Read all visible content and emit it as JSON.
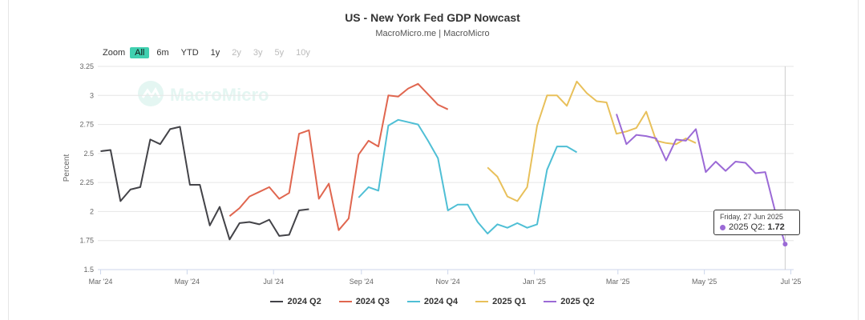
{
  "title": "US - New York Fed GDP Nowcast",
  "subtitle": "MacroMicro.me | MacroMicro",
  "watermark": "MacroMicro",
  "zoom": {
    "label": "Zoom",
    "buttons": [
      "All",
      "6m",
      "YTD",
      "1y",
      "2y",
      "3y",
      "5y",
      "10y"
    ],
    "active": "All",
    "enabled": [
      "All",
      "6m",
      "YTD",
      "1y"
    ]
  },
  "tooltip": {
    "date": "Friday, 27 Jun 2025",
    "series": "2025 Q2",
    "value": "1.72"
  },
  "colors": {
    "2024 Q2": "#434348",
    "2024 Q3": "#e0664f",
    "2024 Q4": "#4fbfd5",
    "2025 Q1": "#e8c05a",
    "2025 Q2": "#9b6ad6",
    "accent": "#40d0b0"
  },
  "chart_data": {
    "type": "line",
    "title": "US - New York Fed GDP Nowcast",
    "ylabel": "Percent",
    "xlabel": "",
    "ylim": [
      1.5,
      3.25
    ],
    "y_ticks": [
      "3.25",
      "3",
      "2.75",
      "2.5",
      "2.25",
      "2",
      "1.75",
      "1.5"
    ],
    "x_range": [
      "2024-02-28",
      "2025-07-03"
    ],
    "x_ticks": [
      {
        "date": "2024-03-01",
        "label": "Mar '24"
      },
      {
        "date": "2024-05-01",
        "label": "May '24"
      },
      {
        "date": "2024-07-01",
        "label": "Jul '24"
      },
      {
        "date": "2024-09-01",
        "label": "Sep '24"
      },
      {
        "date": "2024-11-01",
        "label": "Nov '24"
      },
      {
        "date": "2025-01-01",
        "label": "Jan '25"
      },
      {
        "date": "2025-03-01",
        "label": "Mar '25"
      },
      {
        "date": "2025-05-01",
        "label": "May '25"
      },
      {
        "date": "2025-07-01",
        "label": "Jul '25"
      }
    ],
    "legend_position": "bottom",
    "series": [
      {
        "name": "2024 Q2",
        "points": [
          [
            "2024-03-01",
            2.52
          ],
          [
            "2024-03-08",
            2.53
          ],
          [
            "2024-03-15",
            2.09
          ],
          [
            "2024-03-22",
            2.19
          ],
          [
            "2024-03-29",
            2.21
          ],
          [
            "2024-04-05",
            2.62
          ],
          [
            "2024-04-12",
            2.58
          ],
          [
            "2024-04-19",
            2.71
          ],
          [
            "2024-04-26",
            2.73
          ],
          [
            "2024-05-03",
            2.23
          ],
          [
            "2024-05-10",
            2.23
          ],
          [
            "2024-05-17",
            1.88
          ],
          [
            "2024-05-24",
            2.04
          ],
          [
            "2024-05-31",
            1.76
          ],
          [
            "2024-06-07",
            1.9
          ],
          [
            "2024-06-14",
            1.91
          ],
          [
            "2024-06-21",
            1.89
          ],
          [
            "2024-06-28",
            1.93
          ],
          [
            "2024-07-05",
            1.79
          ],
          [
            "2024-07-12",
            1.8
          ],
          [
            "2024-07-19",
            2.01
          ],
          [
            "2024-07-26",
            2.02
          ]
        ]
      },
      {
        "name": "2024 Q3",
        "points": [
          [
            "2024-05-31",
            1.96
          ],
          [
            "2024-06-07",
            2.03
          ],
          [
            "2024-06-14",
            2.13
          ],
          [
            "2024-06-21",
            2.17
          ],
          [
            "2024-06-28",
            2.21
          ],
          [
            "2024-07-05",
            2.11
          ],
          [
            "2024-07-12",
            2.16
          ],
          [
            "2024-07-19",
            2.67
          ],
          [
            "2024-07-26",
            2.7
          ],
          [
            "2024-08-02",
            2.11
          ],
          [
            "2024-08-09",
            2.24
          ],
          [
            "2024-08-16",
            1.84
          ],
          [
            "2024-08-23",
            1.94
          ],
          [
            "2024-08-30",
            2.49
          ],
          [
            "2024-09-06",
            2.61
          ],
          [
            "2024-09-13",
            2.56
          ],
          [
            "2024-09-20",
            3.0
          ],
          [
            "2024-09-27",
            2.99
          ],
          [
            "2024-10-04",
            3.06
          ],
          [
            "2024-10-11",
            3.1
          ],
          [
            "2024-10-18",
            3.01
          ],
          [
            "2024-10-25",
            2.92
          ],
          [
            "2024-11-01",
            2.88
          ]
        ]
      },
      {
        "name": "2024 Q4",
        "points": [
          [
            "2024-08-30",
            2.12
          ],
          [
            "2024-09-06",
            2.21
          ],
          [
            "2024-09-13",
            2.18
          ],
          [
            "2024-09-20",
            2.74
          ],
          [
            "2024-09-27",
            2.79
          ],
          [
            "2024-10-04",
            2.77
          ],
          [
            "2024-10-11",
            2.75
          ],
          [
            "2024-10-18",
            2.61
          ],
          [
            "2024-10-25",
            2.46
          ],
          [
            "2024-11-01",
            2.01
          ],
          [
            "2024-11-08",
            2.06
          ],
          [
            "2024-11-15",
            2.06
          ],
          [
            "2024-11-22",
            1.91
          ],
          [
            "2024-11-29",
            1.81
          ],
          [
            "2024-12-06",
            1.89
          ],
          [
            "2024-12-13",
            1.86
          ],
          [
            "2024-12-20",
            1.9
          ],
          [
            "2024-12-27",
            1.86
          ],
          [
            "2025-01-03",
            1.89
          ],
          [
            "2025-01-10",
            2.36
          ],
          [
            "2025-01-17",
            2.56
          ],
          [
            "2025-01-24",
            2.56
          ],
          [
            "2025-01-31",
            2.51
          ]
        ]
      },
      {
        "name": "2025 Q1",
        "points": [
          [
            "2024-11-29",
            2.38
          ],
          [
            "2024-12-06",
            2.3
          ],
          [
            "2024-12-13",
            2.13
          ],
          [
            "2024-12-20",
            2.09
          ],
          [
            "2024-12-27",
            2.21
          ],
          [
            "2025-01-03",
            2.74
          ],
          [
            "2025-01-10",
            3.0
          ],
          [
            "2025-01-17",
            3.0
          ],
          [
            "2025-01-24",
            2.91
          ],
          [
            "2025-01-31",
            3.12
          ],
          [
            "2025-02-07",
            3.02
          ],
          [
            "2025-02-14",
            2.95
          ],
          [
            "2025-02-21",
            2.94
          ],
          [
            "2025-02-28",
            2.67
          ],
          [
            "2025-03-07",
            2.69
          ],
          [
            "2025-03-14",
            2.72
          ],
          [
            "2025-03-21",
            2.86
          ],
          [
            "2025-03-28",
            2.61
          ],
          [
            "2025-04-04",
            2.59
          ],
          [
            "2025-04-11",
            2.58
          ],
          [
            "2025-04-18",
            2.63
          ],
          [
            "2025-04-25",
            2.59
          ]
        ]
      },
      {
        "name": "2025 Q2",
        "points": [
          [
            "2025-02-28",
            2.84
          ],
          [
            "2025-03-07",
            2.58
          ],
          [
            "2025-03-14",
            2.66
          ],
          [
            "2025-03-21",
            2.65
          ],
          [
            "2025-03-28",
            2.63
          ],
          [
            "2025-04-04",
            2.44
          ],
          [
            "2025-04-11",
            2.62
          ],
          [
            "2025-04-18",
            2.61
          ],
          [
            "2025-04-25",
            2.71
          ],
          [
            "2025-05-02",
            2.34
          ],
          [
            "2025-05-09",
            2.43
          ],
          [
            "2025-05-16",
            2.35
          ],
          [
            "2025-05-23",
            2.43
          ],
          [
            "2025-05-30",
            2.42
          ],
          [
            "2025-06-06",
            2.33
          ],
          [
            "2025-06-13",
            2.34
          ],
          [
            "2025-06-20",
            2.0
          ],
          [
            "2025-06-27",
            1.72
          ]
        ]
      }
    ]
  }
}
